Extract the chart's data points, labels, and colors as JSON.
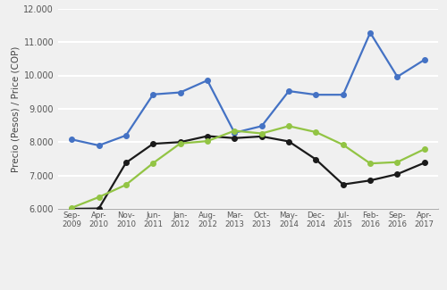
{
  "title": "",
  "ylabel": "Precio (Pesos) / Price (COP)",
  "xlabel": "",
  "ylim": [
    6000,
    12000
  ],
  "yticks": [
    6000,
    7000,
    8000,
    9000,
    10000,
    11000,
    12000
  ],
  "ytick_labels": [
    "6.000",
    "7.000",
    "8.000",
    "9.000",
    "10.000",
    "11.000",
    "12.000"
  ],
  "xtick_labels": [
    "Sep-\n2009",
    "Apr-\n2010",
    "Nov-\n2010",
    "Jun-\n2011",
    "Jan-\n2012",
    "Aug-\n2012",
    "Mar-\n2013",
    "Oct-\n2013",
    "May-\n2014",
    "Dec-\n2014",
    "Jul-\n2015",
    "Feb-\n2016",
    "Sep-\n2016",
    "Apr-\n2017"
  ],
  "biodiesel": [
    8080,
    7900,
    8200,
    9430,
    9490,
    9850,
    8280,
    8480,
    9530,
    9420,
    9420,
    11280,
    9960,
    10470
  ],
  "diesel": [
    6000,
    6010,
    7380,
    7950,
    8000,
    8180,
    8120,
    8170,
    8020,
    7480,
    6730,
    6850,
    7040,
    7380
  ],
  "mezcla": [
    6030,
    6350,
    6720,
    7370,
    7960,
    8030,
    8340,
    8260,
    8480,
    8300,
    7920,
    7360,
    7400,
    7790
  ],
  "biodiesel_color": "#4472C4",
  "diesel_color": "#1a1a1a",
  "mezcla_color": "#92c444",
  "bg_color": "#f0f0f0",
  "grid_color": "#ffffff",
  "marker": "o",
  "markersize": 4,
  "linewidth": 1.6
}
